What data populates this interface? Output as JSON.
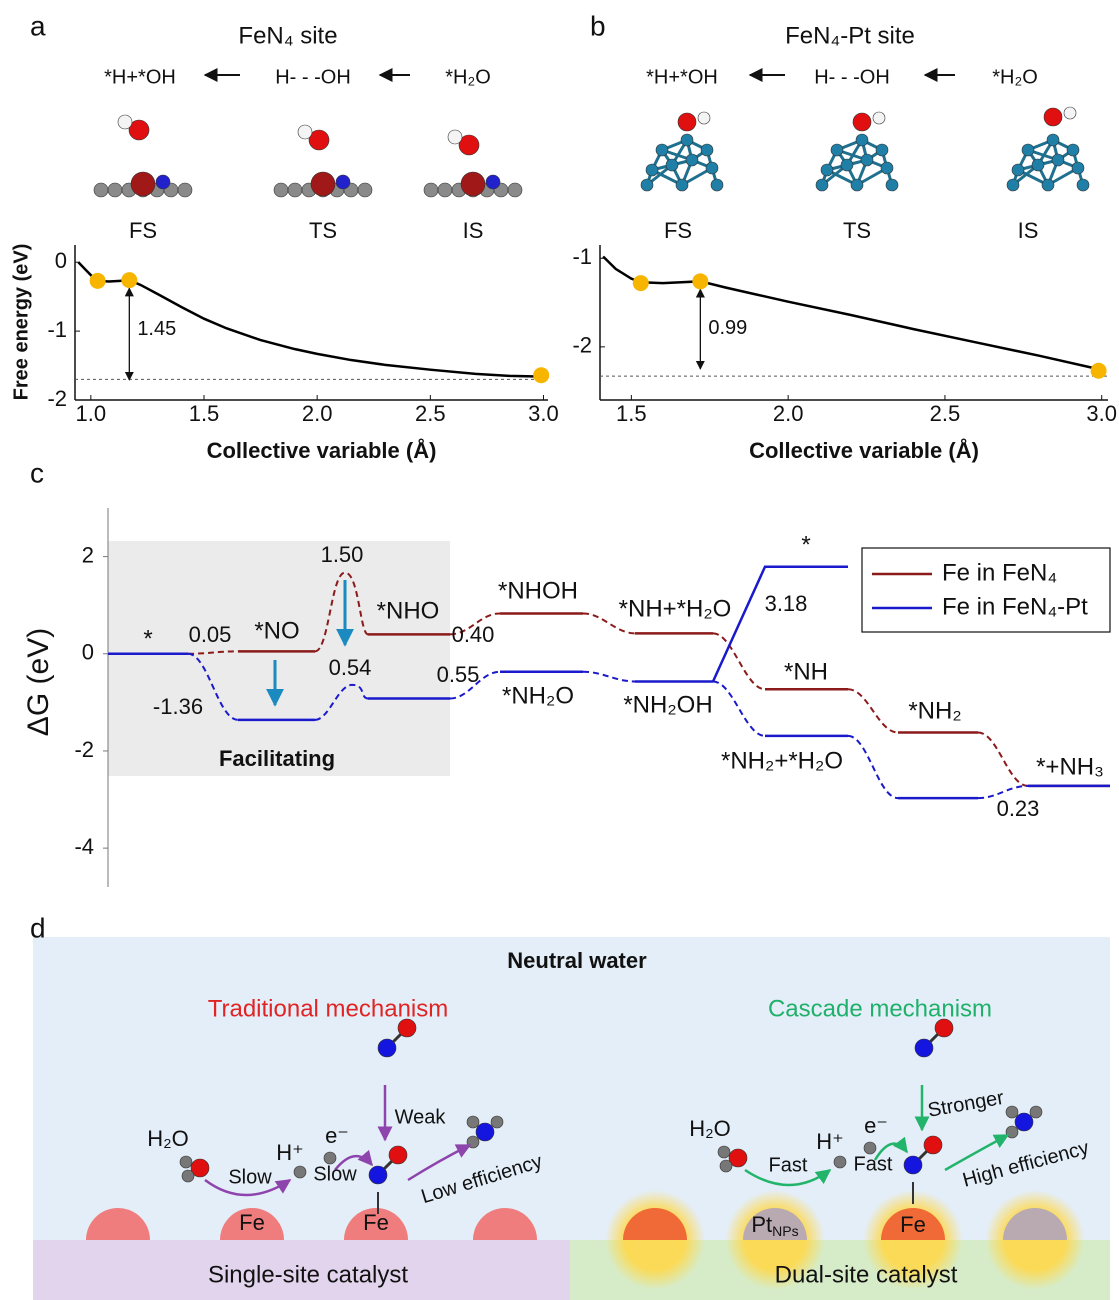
{
  "panel_labels": [
    "a",
    "b",
    "c",
    "d"
  ],
  "chart_data": [
    {
      "type": "line",
      "title": "FeN₄ site",
      "x_label": "Collective variable (Å)",
      "y_label": "Free energy (eV)",
      "state_labels": [
        "*H+*OH",
        "H- - -OH",
        "*H₂O"
      ],
      "state_names": [
        "FS",
        "TS",
        "IS"
      ],
      "x": [
        0.945,
        0.98,
        1.01,
        1.03,
        1.08,
        1.13,
        1.17,
        1.22,
        1.3,
        1.4,
        1.5,
        1.6,
        1.75,
        1.9,
        2.0,
        2.15,
        2.3,
        2.5,
        2.7,
        2.85,
        3.0
      ],
      "values": [
        0,
        -0.12,
        -0.22,
        -0.27,
        -0.28,
        -0.27,
        -0.26,
        -0.33,
        -0.47,
        -0.65,
        -0.82,
        -0.96,
        -1.13,
        -1.26,
        -1.33,
        -1.42,
        -1.49,
        -1.56,
        -1.62,
        -1.65,
        -1.66
      ],
      "color": "#000000",
      "points": {
        "x": [
          1.03,
          1.17,
          2.99
        ],
        "values": [
          -0.27,
          -0.26,
          -1.64
        ],
        "color": "#f7b500"
      },
      "baseline": -1.7,
      "barrier": 1.45,
      "xlim": [
        0.93,
        3.02
      ],
      "ylim": [
        -2,
        0.25
      ],
      "xticks": [
        {
          "value": 1,
          "label": "1.0"
        },
        1.5,
        {
          "value": 2,
          "label": "2.0"
        },
        2.5,
        {
          "value": 3,
          "label": "3.0"
        }
      ],
      "yticks": [
        0,
        -1,
        -2
      ]
    },
    {
      "type": "line",
      "title": "FeN₄-Pt site",
      "x_label": "Collective variable (Å)",
      "state_labels": [
        "*H+*OH",
        "H- - -OH",
        "*H₂O"
      ],
      "state_names": [
        "FS",
        "TS",
        "IS"
      ],
      "x": [
        1.41,
        1.45,
        1.5,
        1.53,
        1.6,
        1.66,
        1.72,
        1.8,
        1.9,
        2.0,
        2.2,
        2.4,
        2.6,
        2.8,
        3.0
      ],
      "values": [
        -0.98,
        -1.12,
        -1.23,
        -1.27,
        -1.28,
        -1.27,
        -1.26,
        -1.33,
        -1.41,
        -1.49,
        -1.64,
        -1.8,
        -1.95,
        -2.1,
        -2.26
      ],
      "color": "#000000",
      "points": {
        "x": [
          1.53,
          1.72,
          2.99
        ],
        "values": [
          -1.28,
          -1.26,
          -2.27
        ],
        "color": "#f7b500"
      },
      "baseline": -2.33,
      "barrier": 0.99,
      "xlim": [
        1.4,
        3.02
      ],
      "ylim": [
        -2.6,
        -0.85
      ],
      "xticks": [
        1.5,
        {
          "value": 2,
          "label": "2.0"
        },
        2.5,
        {
          "value": 3,
          "label": "3.0"
        }
      ],
      "yticks": [
        -1,
        -2
      ]
    },
    {
      "type": "energy-profile",
      "y_label": "ΔG (eV)",
      "ylim": [
        -4.8,
        3
      ],
      "yticks": [
        2,
        0,
        -2,
        -4
      ],
      "shaded_label": "Facilitating",
      "series": [
        {
          "name": "Fe in FeN₄",
          "color": "#8b1a1a",
          "values": [
            0,
            0.05,
            0.4,
            0.83,
            0.42,
            -0.73,
            -1.62,
            -2.72
          ],
          "ts_value": 1.67,
          "labels": [
            "*",
            "*NO",
            "*NHO",
            "*NHOH",
            "*NH+*H₂O",
            "*NH",
            "*NH₂",
            "*+NH₃"
          ]
        },
        {
          "name": "Fe in FeN₄-Pt",
          "color": "#1a1acc",
          "values": [
            0,
            -1.36,
            -0.92,
            -0.37,
            -0.57,
            -1.69,
            -2.97,
            -2.72
          ],
          "ts_value": -0.64,
          "branch_value": 1.79,
          "branch_label": "*",
          "labels": [
            null,
            null,
            null,
            "*NH₂O",
            "*NH₂OH",
            "*NH₂+*H₂O",
            null,
            null
          ]
        }
      ],
      "annotations": [
        0.05,
        -1.36,
        {
          "value": 1.5,
          "label": "1.50"
        },
        0.54,
        {
          "value": 0.4,
          "label": "0.40"
        },
        0.55,
        3.18,
        0.23
      ]
    }
  ],
  "diagram": {
    "title": "Neutral water",
    "left": {
      "heading": "Traditional mechanism",
      "h2o": "H₂O",
      "step1": "Slow",
      "proton": "H⁺",
      "electron": "e⁻",
      "step2": "Slow",
      "adsorption": "Weak",
      "outcome": "Low efficiency",
      "site1": "Fe",
      "site2": "Fe",
      "catalyst": "Single-site catalyst"
    },
    "right": {
      "heading": "Cascade mechanism",
      "h2o": "H₂O",
      "step1": "Fast",
      "proton": "H⁺",
      "electron": "e⁻",
      "step2": "Fast",
      "adsorption": "Stronger",
      "outcome": "High efficiency",
      "site1": "Pt",
      "site1_sub": "NPs",
      "site2": "Fe",
      "catalyst": "Dual-site catalyst"
    }
  }
}
